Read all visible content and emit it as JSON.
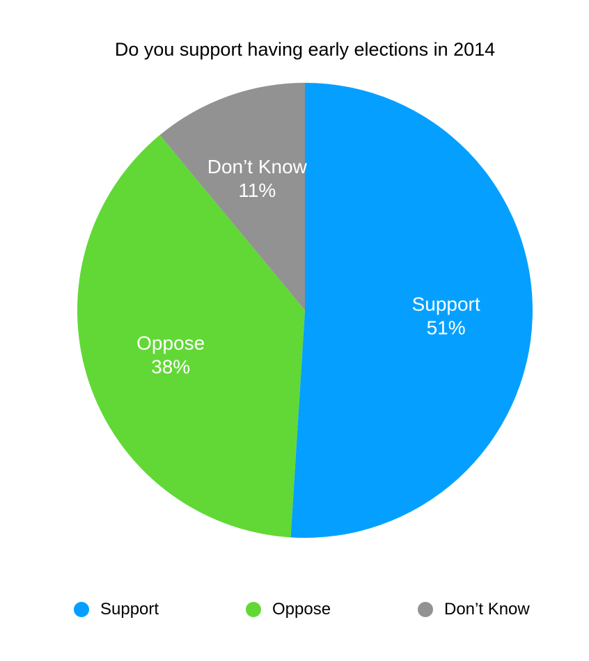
{
  "chart_data": {
    "type": "pie",
    "title": "Do you support having early elections in 2014",
    "slices": [
      {
        "label": "Support",
        "value": 51,
        "value_label": "51%",
        "color": "#05A0FF"
      },
      {
        "label": "Oppose",
        "value": 38,
        "value_label": "38%",
        "color": "#61D836"
      },
      {
        "label": "Don’t Know",
        "value": 11,
        "value_label": "11%",
        "color": "#929292"
      }
    ],
    "legend": {
      "position": "bottom",
      "items": [
        "Support",
        "Oppose",
        "Don’t Know"
      ]
    },
    "start_angle": "12 o'clock",
    "direction": "clockwise"
  }
}
